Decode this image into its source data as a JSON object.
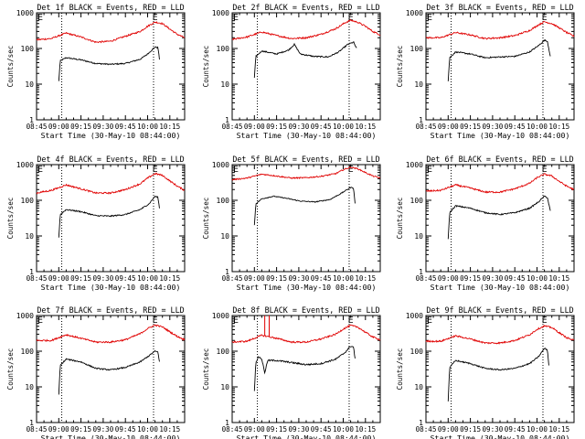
{
  "page": {
    "ylabel": "Counts/sec",
    "xlabel": "Start Time (30-May-10 08:44:00)",
    "x_ticks": [
      "08:45",
      "09:00",
      "09:15",
      "09:30",
      "09:45",
      "10:00",
      "10:15"
    ],
    "y_ticks": [
      "1",
      "10",
      "100",
      "1000"
    ],
    "marker_label": "E",
    "colors": {
      "events": "#000000",
      "lld": "#e00000",
      "axes": "#000000"
    }
  },
  "chart_data": [
    {
      "type": "line",
      "title": "Det 1f BLACK = Events, RED = LLD",
      "xlabel": "Start Time (30-May-10 08:44:00)",
      "ylabel": "Counts/sec",
      "x_unit": "minutes after 08:45",
      "xlim": [
        0,
        100
      ],
      "ylim": [
        1,
        1000
      ],
      "yscale": "log",
      "x_ticks": [
        "08:45",
        "09:00",
        "09:15",
        "09:30",
        "09:45",
        "10:00",
        "10:15"
      ],
      "y_ticks": [
        "1",
        "10",
        "100",
        "1000"
      ],
      "dotted_lines": [
        17,
        79
      ],
      "marker": {
        "label": "E",
        "x": 80
      },
      "series": [
        {
          "name": "Events",
          "color": "#000000",
          "noise": 0.04,
          "x": [
            15,
            16,
            20,
            30,
            40,
            50,
            60,
            70,
            75,
            80,
            82,
            83
          ],
          "y": [
            12,
            45,
            55,
            48,
            38,
            36,
            38,
            50,
            70,
            110,
            105,
            50
          ]
        },
        {
          "name": "LLD",
          "color": "#e00000",
          "noise": 0.05,
          "x": [
            0,
            10,
            20,
            30,
            40,
            50,
            60,
            70,
            75,
            80,
            85,
            90,
            95,
            100
          ],
          "y": [
            175,
            190,
            270,
            210,
            150,
            160,
            220,
            300,
            420,
            550,
            500,
            350,
            250,
            200
          ]
        }
      ]
    },
    {
      "type": "line",
      "title": "Det 2f BLACK = Events, RED = LLD",
      "xlabel": "Start Time (30-May-10 08:44:00)",
      "ylabel": "Counts/sec",
      "x_unit": "minutes after 08:45",
      "xlim": [
        0,
        100
      ],
      "ylim": [
        1,
        1000
      ],
      "yscale": "log",
      "x_ticks": [
        "08:45",
        "09:00",
        "09:15",
        "09:30",
        "09:45",
        "10:00",
        "10:15"
      ],
      "y_ticks": [
        "1",
        "10",
        "100",
        "1000"
      ],
      "dotted_lines": [
        17,
        79
      ],
      "marker": {
        "label": "E",
        "x": 80
      },
      "series": [
        {
          "name": "Events",
          "color": "#000000",
          "noise": 0.04,
          "x": [
            15,
            16,
            20,
            30,
            38,
            42,
            46,
            55,
            65,
            72,
            78,
            82,
            84
          ],
          "y": [
            15,
            60,
            85,
            70,
            90,
            130,
            70,
            60,
            58,
            80,
            130,
            150,
            100
          ]
        },
        {
          "name": "LLD",
          "color": "#e00000",
          "noise": 0.05,
          "x": [
            0,
            10,
            20,
            30,
            40,
            50,
            60,
            70,
            76,
            80,
            85,
            90,
            95,
            100
          ],
          "y": [
            180,
            210,
            290,
            230,
            190,
            200,
            250,
            360,
            520,
            620,
            540,
            420,
            300,
            240
          ]
        }
      ]
    },
    {
      "type": "line",
      "title": "Det 3f BLACK = Events, RED = LLD",
      "xlabel": "Start Time (30-May-10 08:44:00)",
      "ylabel": "Counts/sec",
      "x_unit": "minutes after 08:45",
      "xlim": [
        0,
        100
      ],
      "ylim": [
        1,
        1000
      ],
      "yscale": "log",
      "x_ticks": [
        "08:45",
        "09:00",
        "09:15",
        "09:30",
        "09:45",
        "10:00",
        "10:15"
      ],
      "y_ticks": [
        "1",
        "10",
        "100",
        "1000"
      ],
      "dotted_lines": [
        17,
        79
      ],
      "marker": {
        "label": "E",
        "x": 80
      },
      "series": [
        {
          "name": "Events",
          "color": "#000000",
          "noise": 0.04,
          "x": [
            15,
            16,
            20,
            30,
            40,
            50,
            60,
            70,
            76,
            80,
            82,
            84
          ],
          "y": [
            12,
            55,
            80,
            70,
            55,
            58,
            60,
            80,
            120,
            170,
            160,
            60
          ]
        },
        {
          "name": "LLD",
          "color": "#e00000",
          "noise": 0.05,
          "x": [
            0,
            10,
            20,
            30,
            40,
            50,
            60,
            70,
            76,
            80,
            85,
            90,
            95,
            100
          ],
          "y": [
            200,
            200,
            280,
            240,
            190,
            200,
            230,
            320,
            460,
            560,
            500,
            380,
            280,
            220
          ]
        }
      ]
    },
    {
      "type": "line",
      "title": "Det 4f BLACK = Events, RED = LLD",
      "xlabel": "Start Time (30-May-10 08:44:00)",
      "ylabel": "Counts/sec",
      "x_unit": "minutes after 08:45",
      "xlim": [
        0,
        100
      ],
      "ylim": [
        1,
        1000
      ],
      "yscale": "log",
      "x_ticks": [
        "08:45",
        "09:00",
        "09:15",
        "09:30",
        "09:45",
        "10:00",
        "10:15"
      ],
      "y_ticks": [
        "1",
        "10",
        "100",
        "1000"
      ],
      "dotted_lines": [
        17,
        79
      ],
      "marker": {
        "label": "E",
        "x": 80
      },
      "series": [
        {
          "name": "Events",
          "color": "#000000",
          "noise": 0.04,
          "x": [
            15,
            16,
            20,
            30,
            40,
            50,
            60,
            70,
            76,
            80,
            82,
            83
          ],
          "y": [
            9,
            40,
            55,
            48,
            37,
            36,
            40,
            55,
            80,
            130,
            120,
            60
          ]
        },
        {
          "name": "LLD",
          "color": "#e00000",
          "noise": 0.05,
          "x": [
            0,
            10,
            20,
            30,
            40,
            50,
            60,
            70,
            75,
            80,
            85,
            90,
            95,
            100
          ],
          "y": [
            160,
            190,
            270,
            210,
            160,
            160,
            200,
            290,
            420,
            560,
            500,
            350,
            250,
            190
          ]
        }
      ]
    },
    {
      "type": "line",
      "title": "Det 5f BLACK = Events, RED = LLD",
      "xlabel": "Start Time (30-May-10 08:44:00)",
      "ylabel": "Counts/sec",
      "x_unit": "minutes after 08:45",
      "xlim": [
        0,
        100
      ],
      "ylim": [
        1,
        1000
      ],
      "yscale": "log",
      "x_ticks": [
        "08:45",
        "09:00",
        "09:15",
        "09:30",
        "09:45",
        "10:00",
        "10:15"
      ],
      "y_ticks": [
        "1",
        "10",
        "100",
        "1000"
      ],
      "dotted_lines": [
        17,
        79
      ],
      "marker": {
        "label": "E",
        "x": 80
      },
      "series": [
        {
          "name": "Events",
          "color": "#000000",
          "noise": 0.03,
          "x": [
            15,
            16,
            20,
            28,
            36,
            46,
            56,
            66,
            74,
            80,
            82,
            83
          ],
          "y": [
            20,
            80,
            110,
            130,
            115,
            95,
            90,
            105,
            160,
            230,
            220,
            80
          ]
        },
        {
          "name": "LLD",
          "color": "#e00000",
          "noise": 0.04,
          "x": [
            0,
            10,
            20,
            30,
            40,
            50,
            60,
            70,
            75,
            80,
            85,
            90,
            95,
            100
          ],
          "y": [
            380,
            420,
            540,
            480,
            420,
            430,
            470,
            560,
            720,
            850,
            760,
            600,
            480,
            420
          ]
        }
      ]
    },
    {
      "type": "line",
      "title": "Det 6f BLACK = Events, RED = LLD",
      "xlabel": "Start Time (30-May-10 08:44:00)",
      "ylabel": "Counts/sec",
      "x_unit": "minutes after 08:45",
      "xlim": [
        0,
        100
      ],
      "ylim": [
        1,
        1000
      ],
      "yscale": "log",
      "x_ticks": [
        "08:45",
        "09:00",
        "09:15",
        "09:30",
        "09:45",
        "10:00",
        "10:15"
      ],
      "y_ticks": [
        "1",
        "10",
        "100",
        "1000"
      ],
      "dotted_lines": [
        17,
        79
      ],
      "marker": {
        "label": "E",
        "x": 80
      },
      "series": [
        {
          "name": "Events",
          "color": "#000000",
          "noise": 0.04,
          "x": [
            15,
            16,
            20,
            30,
            40,
            50,
            60,
            70,
            76,
            80,
            82,
            84
          ],
          "y": [
            8,
            45,
            70,
            60,
            45,
            40,
            45,
            60,
            90,
            130,
            120,
            50
          ]
        },
        {
          "name": "LLD",
          "color": "#e00000",
          "noise": 0.05,
          "x": [
            0,
            10,
            20,
            30,
            40,
            50,
            60,
            70,
            75,
            80,
            85,
            90,
            95,
            100
          ],
          "y": [
            180,
            190,
            270,
            220,
            170,
            170,
            210,
            300,
            430,
            540,
            480,
            340,
            250,
            200
          ]
        }
      ]
    },
    {
      "type": "line",
      "title": "Det 7f BLACK = Events, RED = LLD",
      "xlabel": "Start Time (30-May-10 08:44:00)",
      "ylabel": "Counts/sec",
      "x_unit": "minutes after 08:45",
      "xlim": [
        0,
        100
      ],
      "ylim": [
        1,
        1000
      ],
      "yscale": "log",
      "x_ticks": [
        "08:45",
        "09:00",
        "09:15",
        "09:30",
        "09:45",
        "10:00",
        "10:15"
      ],
      "y_ticks": [
        "1",
        "10",
        "100",
        "1000"
      ],
      "dotted_lines": [
        17,
        79
      ],
      "marker": {
        "label": "E",
        "x": 80
      },
      "series": [
        {
          "name": "Events",
          "color": "#000000",
          "noise": 0.04,
          "x": [
            15,
            16,
            20,
            30,
            40,
            50,
            60,
            70,
            76,
            80,
            82,
            83
          ],
          "y": [
            6,
            40,
            60,
            50,
            33,
            30,
            35,
            50,
            75,
            100,
            95,
            50
          ]
        },
        {
          "name": "LLD",
          "color": "#e00000",
          "noise": 0.05,
          "x": [
            0,
            10,
            20,
            30,
            40,
            50,
            60,
            70,
            75,
            80,
            85,
            90,
            95,
            100
          ],
          "y": [
            200,
            200,
            290,
            230,
            180,
            180,
            210,
            310,
            430,
            540,
            480,
            350,
            260,
            210
          ]
        }
      ]
    },
    {
      "type": "line",
      "title": "Det 8f BLACK = Events, RED = LLD",
      "xlabel": "Start Time (30-May-10 08:44:00)",
      "ylabel": "Counts/sec",
      "x_unit": "minutes after 08:45",
      "xlim": [
        0,
        100
      ],
      "ylim": [
        1,
        1000
      ],
      "yscale": "log",
      "x_ticks": [
        "08:45",
        "09:00",
        "09:15",
        "09:30",
        "09:45",
        "10:00",
        "10:15"
      ],
      "y_ticks": [
        "1",
        "10",
        "100",
        "1000"
      ],
      "dotted_lines": [
        17,
        79
      ],
      "marker": {
        "label": "E",
        "x": 80
      },
      "spikes": [
        {
          "series": "LLD",
          "x": [
            22,
            25
          ],
          "y": 1000
        }
      ],
      "series": [
        {
          "name": "Events",
          "color": "#000000",
          "noise": 0.05,
          "x": [
            15,
            16,
            18,
            20,
            22,
            24,
            30,
            40,
            50,
            60,
            70,
            76,
            80,
            82,
            83
          ],
          "y": [
            8,
            50,
            70,
            60,
            25,
            55,
            55,
            48,
            42,
            45,
            60,
            90,
            140,
            130,
            60
          ]
        },
        {
          "name": "LLD",
          "color": "#e00000",
          "noise": 0.05,
          "x": [
            0,
            10,
            20,
            30,
            40,
            50,
            60,
            70,
            75,
            80,
            85,
            90,
            95,
            100
          ],
          "y": [
            180,
            190,
            280,
            230,
            180,
            180,
            220,
            300,
            420,
            530,
            470,
            340,
            250,
            210
          ]
        }
      ]
    },
    {
      "type": "line",
      "title": "Det 9f BLACK = Events, RED = LLD",
      "xlabel": "Start Time (30-May-10 08:44:00)",
      "ylabel": "Counts/sec",
      "x_unit": "minutes after 08:45",
      "xlim": [
        0,
        100
      ],
      "ylim": [
        1,
        1000
      ],
      "yscale": "log",
      "x_ticks": [
        "08:45",
        "09:00",
        "09:15",
        "09:30",
        "09:45",
        "10:00",
        "10:15"
      ],
      "y_ticks": [
        "1",
        "10",
        "100",
        "1000"
      ],
      "dotted_lines": [
        17,
        79
      ],
      "marker": {
        "label": "E",
        "x": 80
      },
      "series": [
        {
          "name": "Events",
          "color": "#000000",
          "noise": 0.04,
          "x": [
            15,
            16,
            20,
            30,
            40,
            50,
            60,
            70,
            76,
            80,
            82,
            83
          ],
          "y": [
            4,
            35,
            55,
            45,
            33,
            30,
            33,
            45,
            70,
            120,
            110,
            40
          ]
        },
        {
          "name": "LLD",
          "color": "#e00000",
          "noise": 0.05,
          "x": [
            0,
            10,
            20,
            30,
            40,
            50,
            60,
            70,
            75,
            80,
            85,
            90,
            95,
            100
          ],
          "y": [
            190,
            190,
            270,
            220,
            170,
            170,
            200,
            290,
            410,
            510,
            460,
            330,
            240,
            200
          ]
        }
      ]
    }
  ]
}
